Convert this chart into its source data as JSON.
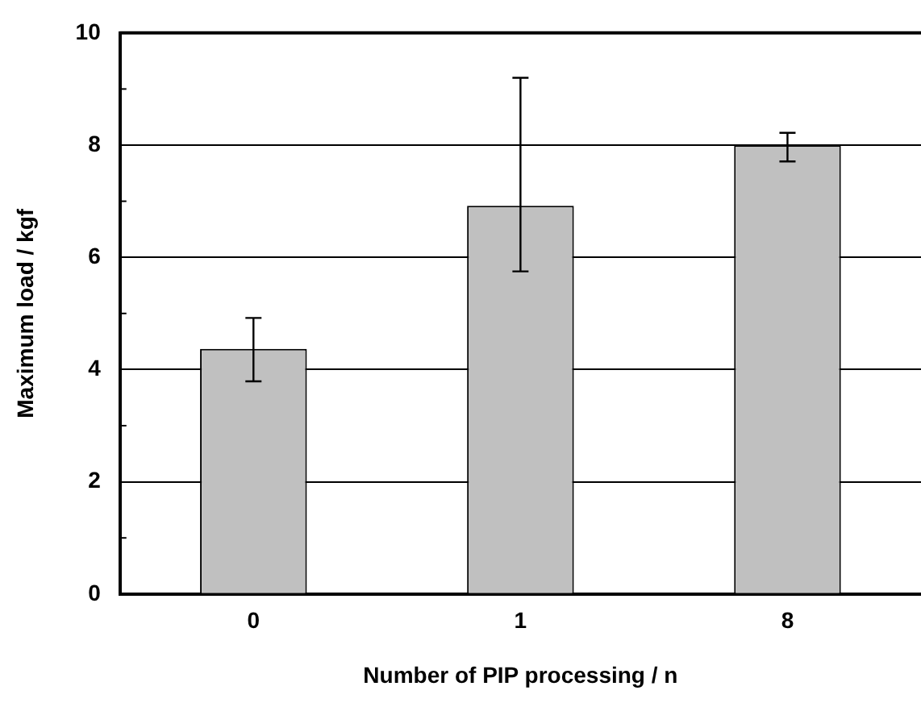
{
  "chart_data": {
    "type": "bar",
    "xlabel": "Number of PIP processing / n",
    "ylabel": "Maximum load / kgf",
    "categories": [
      "0",
      "1",
      "8"
    ],
    "values": [
      4.37,
      6.92,
      8.0
    ],
    "errors": [
      [
        3.79,
        4.92
      ],
      [
        5.75,
        9.2
      ],
      [
        7.71,
        8.22
      ]
    ],
    "color": "#c0c0c0",
    "ylim": [
      0,
      10
    ],
    "yticks": [
      0,
      {
        "value": 1,
        "label": null
      },
      2,
      {
        "value": 3,
        "label": null
      },
      4,
      {
        "value": 5,
        "label": null
      },
      6,
      {
        "value": 7,
        "label": null
      },
      8,
      {
        "value": 9,
        "label": null
      },
      10
    ],
    "grid": "y",
    "legend": false
  }
}
